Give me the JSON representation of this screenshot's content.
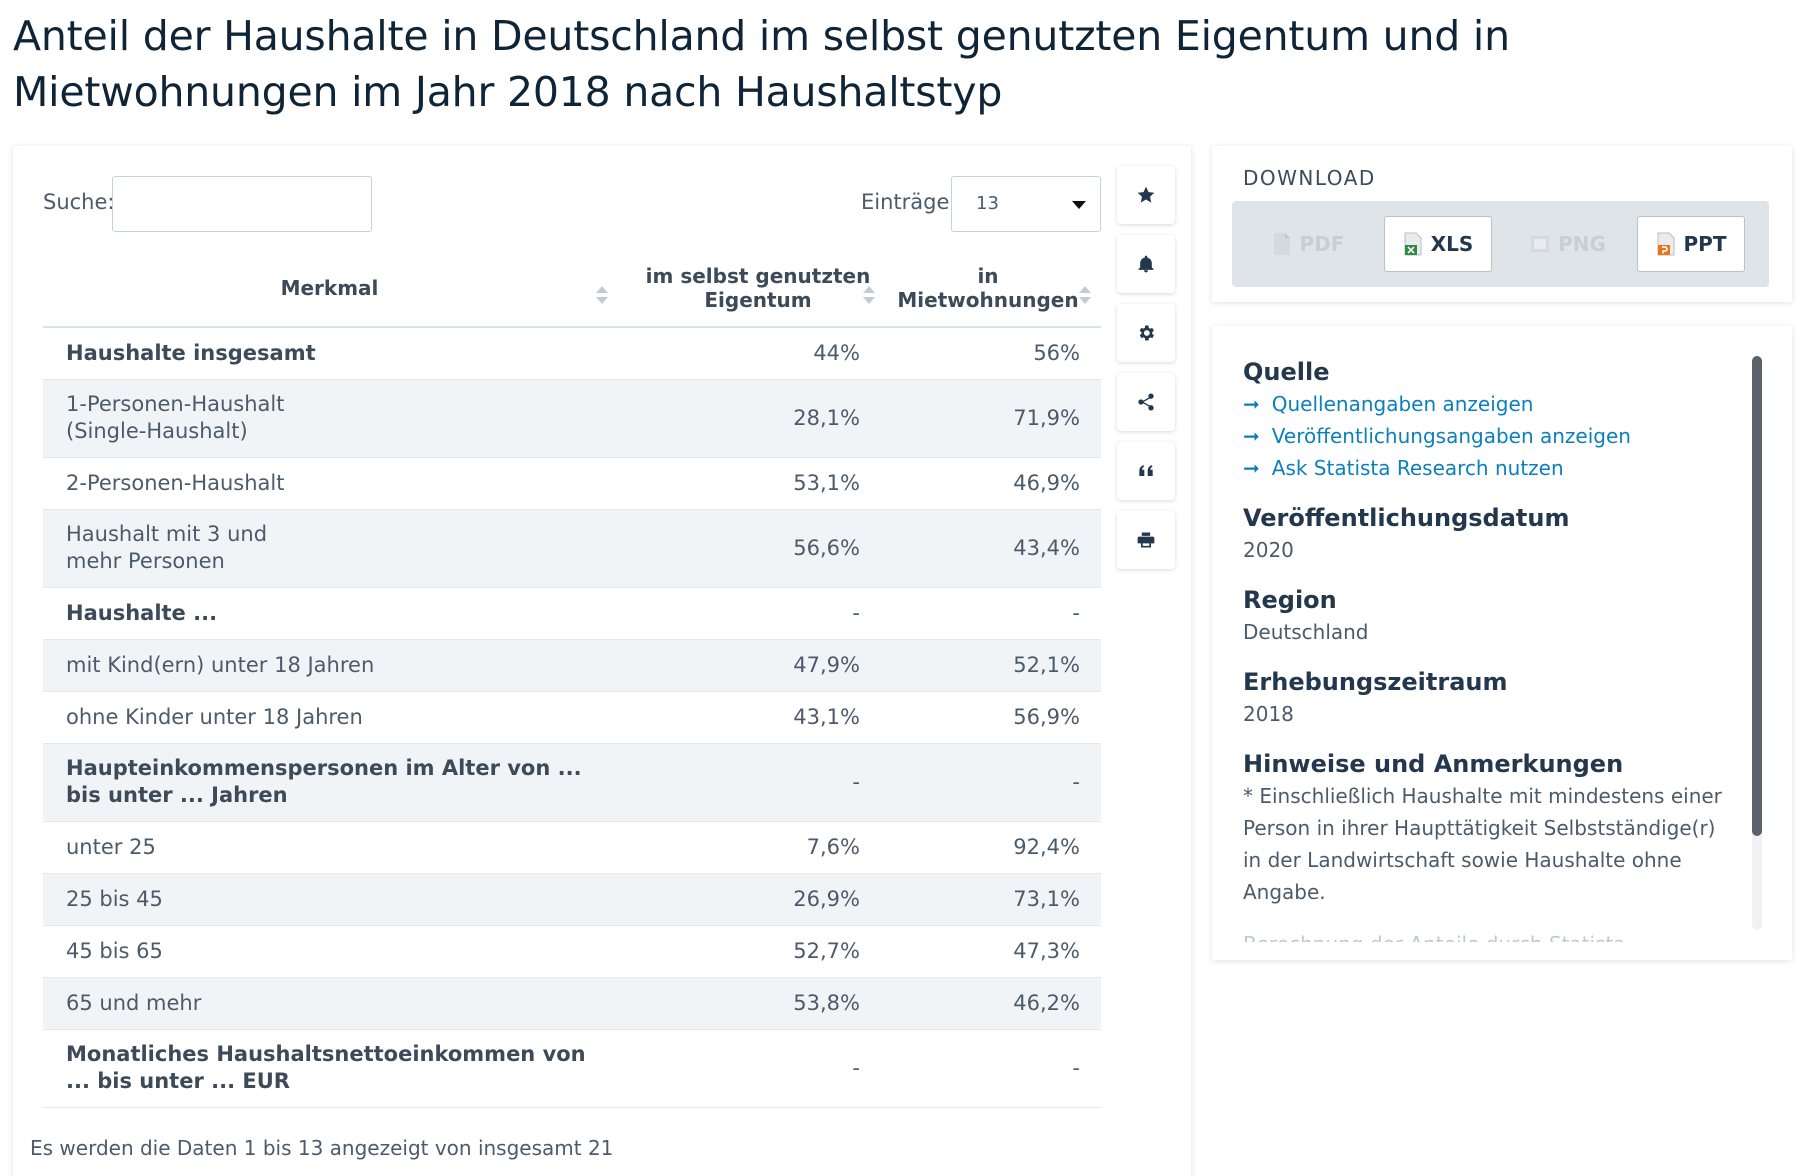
{
  "title": "Anteil der Haushalte in Deutschland im selbst genutzten Eigentum und in Mietwohnungen im Jahr 2018 nach Haushaltstyp",
  "controls": {
    "search_label": "Suche:",
    "search_value": "",
    "entries_label": "Einträge:",
    "entries_value": "13"
  },
  "table": {
    "headers": [
      "Merkmal",
      "im selbst genutzten Eigentum",
      "in Mietwohnungen"
    ],
    "rows": [
      {
        "label": "Haushalte insgesamt",
        "eigentum": "44%",
        "miete": "56%",
        "bold": true
      },
      {
        "label": "1-Personen-Haushalt (Single-Haushalt)",
        "eigentum": "28,1%",
        "miete": "71,9%",
        "bold": false
      },
      {
        "label": "2-Personen-Haushalt",
        "eigentum": "53,1%",
        "miete": "46,9%",
        "bold": false
      },
      {
        "label": "Haushalt mit 3 und mehr Personen",
        "eigentum": "56,6%",
        "miete": "43,4%",
        "bold": false
      },
      {
        "label": "Haushalte ...",
        "eigentum": "-",
        "miete": "-",
        "bold": true
      },
      {
        "label": "mit Kind(ern) unter 18 Jahren",
        "eigentum": "47,9%",
        "miete": "52,1%",
        "bold": false
      },
      {
        "label": "ohne Kinder unter 18 Jahren",
        "eigentum": "43,1%",
        "miete": "56,9%",
        "bold": false
      },
      {
        "label": "Haupteinkommenspersonen im Alter von ... bis unter ... Jahren",
        "eigentum": "-",
        "miete": "-",
        "bold": true
      },
      {
        "label": "unter 25",
        "eigentum": "7,6%",
        "miete": "92,4%",
        "bold": false
      },
      {
        "label": "25 bis 45",
        "eigentum": "26,9%",
        "miete": "73,1%",
        "bold": false
      },
      {
        "label": "45 bis 65",
        "eigentum": "52,7%",
        "miete": "47,3%",
        "bold": false
      },
      {
        "label": "65 und mehr",
        "eigentum": "53,8%",
        "miete": "46,2%",
        "bold": false
      },
      {
        "label": "Monatliches Haushaltsnettoeinkommen von ... bis unter ... EUR",
        "eigentum": "-",
        "miete": "-",
        "bold": true
      }
    ],
    "footer": "Es werden die Daten 1 bis 13 angezeigt von insgesamt 21"
  },
  "toolbar": {
    "icons": [
      "star-icon",
      "bell-icon",
      "gear-icon",
      "share-icon",
      "quote-icon",
      "print-icon"
    ]
  },
  "download": {
    "title": "DOWNLOAD",
    "buttons": [
      {
        "label": "PDF",
        "enabled": false
      },
      {
        "label": "XLS",
        "enabled": true
      },
      {
        "label": "PNG",
        "enabled": false
      },
      {
        "label": "PPT",
        "enabled": true
      }
    ]
  },
  "info": {
    "source_heading": "Quelle",
    "links": [
      "Quellenangaben anzeigen",
      "Veröffentlichungsangaben anzeigen",
      "Ask Statista Research nutzen"
    ],
    "pubdate_heading": "Veröffentlichungsdatum",
    "pubdate_value": "2020",
    "region_heading": "Region",
    "region_value": "Deutschland",
    "period_heading": "Erhebungszeitraum",
    "period_value": "2018",
    "notes_heading": "Hinweise und Anmerkungen",
    "notes_text": "* Einschließlich Haushalte mit mindestens einer Person in ihrer Haupttätigkeit Selbstständige(r) in der Landwirtschaft sowie Haushalte ohne Angabe.",
    "notes_more": "Berechnung der Anteile durch Statista."
  },
  "colors": {
    "title": "#0f2537",
    "link": "#0c7fbd",
    "row_alt": "#f1f4f7"
  }
}
